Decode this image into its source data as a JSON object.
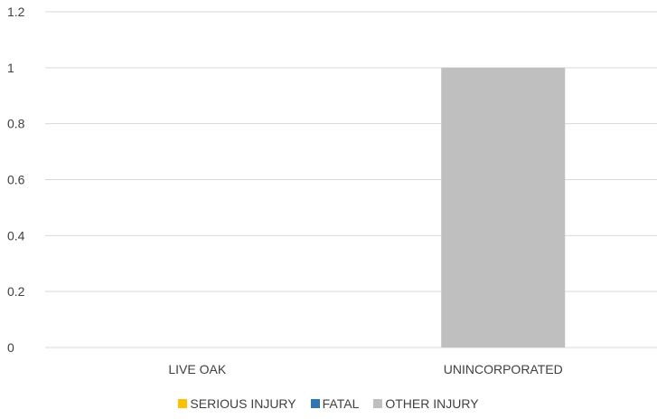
{
  "chart_data": {
    "type": "bar",
    "title": "",
    "xlabel": "",
    "ylabel": "",
    "categories": [
      "LIVE OAK",
      "UNINCORPORATED"
    ],
    "ylim": [
      0,
      1.2
    ],
    "yticks": [
      "0",
      "0.2",
      "0.4",
      "0.6",
      "0.8",
      "1",
      "1.2"
    ],
    "grid": true,
    "legend_position": "bottom",
    "series": [
      {
        "name": "SERIOUS INJURY",
        "color": "#FFC000",
        "values": [
          0,
          0
        ]
      },
      {
        "name": "FATAL",
        "color": "#2E75B6",
        "values": [
          0,
          0
        ]
      },
      {
        "name": "OTHER INJURY",
        "color": "#BFBFBF",
        "values": [
          0,
          1
        ]
      }
    ]
  }
}
